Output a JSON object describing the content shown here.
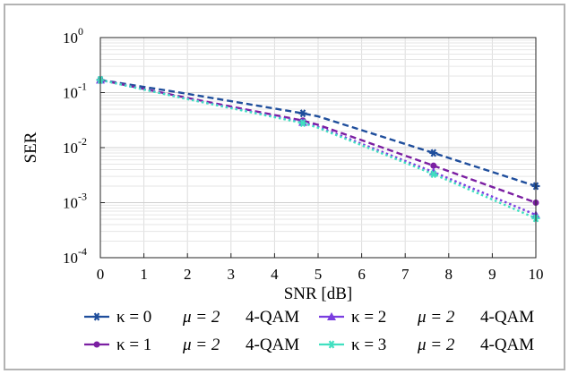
{
  "chart_data": {
    "type": "line",
    "xlabel": "SNR [dB]",
    "ylabel": "SER",
    "xlim": [
      0,
      10
    ],
    "ylim_log10": [
      -4,
      0
    ],
    "yscale": "log",
    "grid": true,
    "legend_placement": "bottom",
    "x_ticks": [
      "0",
      "1",
      "2",
      "3",
      "4",
      "5",
      "6",
      "7",
      "8",
      "9",
      "10"
    ],
    "y_ticks": [
      {
        "base": "10",
        "exp": "0"
      },
      {
        "base": "10",
        "exp": "-1"
      },
      {
        "base": "10",
        "exp": "-2"
      },
      {
        "base": "10",
        "exp": "-3"
      },
      {
        "base": "10",
        "exp": "-4"
      }
    ],
    "series": [
      {
        "name": "κ = 0   μ = 2   4-QAM",
        "legend_kappa": "κ = 0",
        "legend_mu": "μ = 2",
        "legend_mod": "4-QAM",
        "color": "#1f4e9c",
        "marker": "star",
        "line_style": "dashed",
        "x": [
          0,
          2,
          4.65,
          5,
          7.65,
          10
        ],
        "y": [
          0.17,
          0.095,
          0.042,
          0.037,
          0.008,
          0.002
        ],
        "marker_x": [
          0,
          4.65,
          7.65,
          10
        ]
      },
      {
        "name": "κ = 1   μ = 2   4-QAM",
        "legend_kappa": "κ = 1",
        "legend_mu": "μ = 2",
        "legend_mod": "4-QAM",
        "color": "#7b1fa2",
        "marker": "dot",
        "line_style": "dashed",
        "x": [
          0,
          2,
          4.65,
          5,
          7.65,
          10
        ],
        "y": [
          0.17,
          0.08,
          0.031,
          0.026,
          0.0047,
          0.001
        ],
        "marker_x": [
          0,
          4.65,
          7.65,
          10
        ]
      },
      {
        "name": "κ = 2   μ = 2   4-QAM",
        "legend_kappa": "κ = 2",
        "legend_mu": "μ = 2",
        "legend_mod": "4-QAM",
        "color": "#7a3ee0",
        "marker": "triangle",
        "line_style": "dotted",
        "x": [
          0,
          2,
          4.65,
          5,
          7.65,
          10
        ],
        "y": [
          0.17,
          0.077,
          0.029,
          0.024,
          0.0036,
          0.0006
        ],
        "marker_x": [
          0,
          4.65,
          7.65,
          10
        ]
      },
      {
        "name": "κ = 3   μ = 2   4-QAM",
        "legend_kappa": "κ = 3",
        "legend_mu": "μ = 2",
        "legend_mod": "4-QAM",
        "color": "#40e0c0",
        "marker": "star",
        "line_style": "dotted",
        "x": [
          0,
          2,
          4.65,
          5,
          7.65,
          10
        ],
        "y": [
          0.17,
          0.076,
          0.028,
          0.023,
          0.0033,
          0.00052
        ],
        "marker_x": [
          0,
          4.65,
          7.65,
          10
        ]
      }
    ]
  }
}
